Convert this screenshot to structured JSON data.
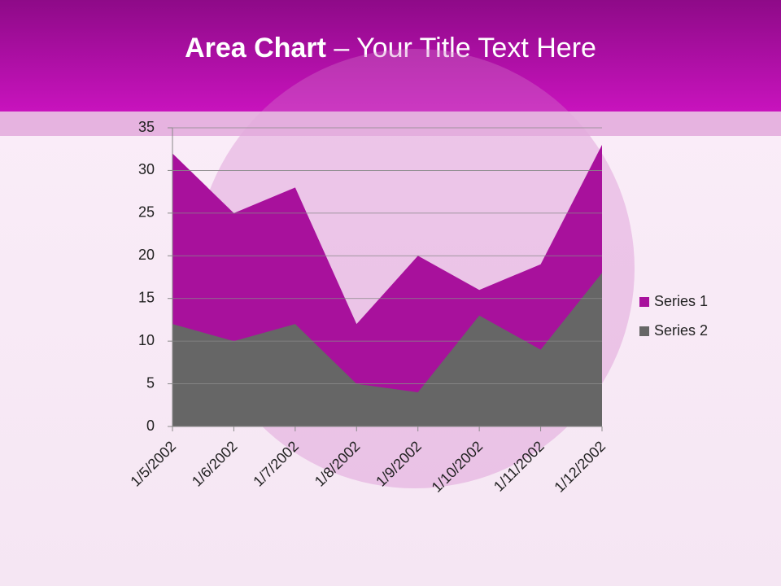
{
  "header": {
    "title_bold": "Area Chart",
    "title_rest": "– Your Title Text Here"
  },
  "chart_data": {
    "type": "area",
    "categories": [
      "1/5/2002",
      "1/6/2002",
      "1/7/2002",
      "1/8/2002",
      "1/9/2002",
      "1/10/2002",
      "1/11/2002",
      "1/12/2002"
    ],
    "series": [
      {
        "name": "Series 1",
        "color": "#a8119c",
        "values": [
          32,
          25,
          28,
          12,
          20,
          16,
          19,
          33
        ]
      },
      {
        "name": "Series 2",
        "color": "#666666",
        "values": [
          12,
          10,
          12,
          5,
          4,
          13,
          9,
          18
        ]
      }
    ],
    "ylim": [
      0,
      35
    ],
    "yticks": [
      0,
      5,
      10,
      15,
      20,
      25,
      30,
      35
    ],
    "grid": true,
    "legend": "right"
  }
}
